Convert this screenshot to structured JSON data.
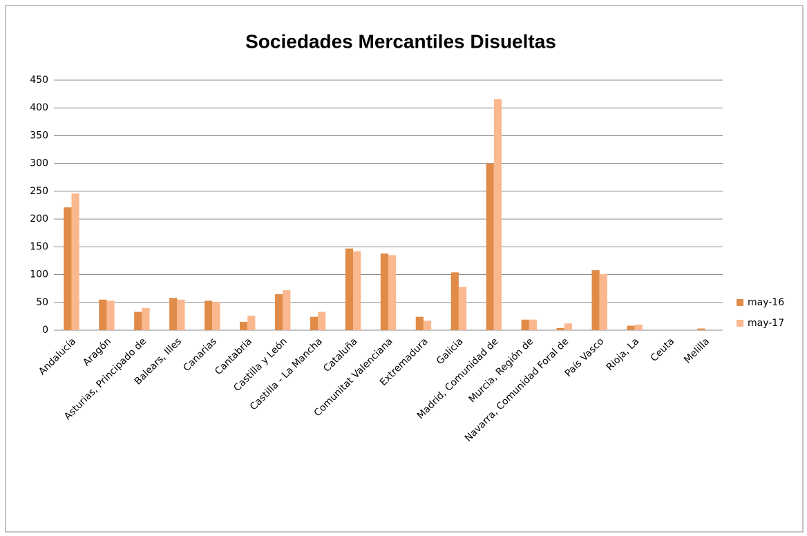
{
  "chart_data": {
    "type": "bar",
    "title": "Sociedades Mercantiles Disueltas",
    "categories": [
      "Andalucía",
      "Aragón",
      "Asturias, Principado de",
      "Balears, Illes",
      "Canarias",
      "Cantabria",
      "Castilla y León",
      "Castilla - La Mancha",
      "Cataluña",
      "Comunitat Valenciana",
      "Extremadura",
      "Galicia",
      "Madrid, Comunidad de",
      "Murcia, Región de",
      "Navarra, Comunidad Foral de",
      "País Vasco",
      "Rioja, La",
      "Ceuta",
      "Melilla"
    ],
    "series": [
      {
        "name": "may-16",
        "color": "#e08c48",
        "values": [
          221,
          55,
          33,
          58,
          53,
          15,
          65,
          24,
          147,
          138,
          24,
          104,
          300,
          19,
          4,
          108,
          8,
          0,
          3
        ]
      },
      {
        "name": "may-17",
        "color": "#fbb88f",
        "values": [
          246,
          53,
          40,
          55,
          51,
          26,
          72,
          33,
          142,
          135,
          17,
          78,
          416,
          19,
          12,
          101,
          10,
          0,
          0
        ]
      }
    ],
    "ylim": [
      0,
      450
    ],
    "yticks": [
      0,
      50,
      100,
      150,
      200,
      250,
      300,
      350,
      400,
      450
    ],
    "grid": true,
    "legend": "right"
  }
}
